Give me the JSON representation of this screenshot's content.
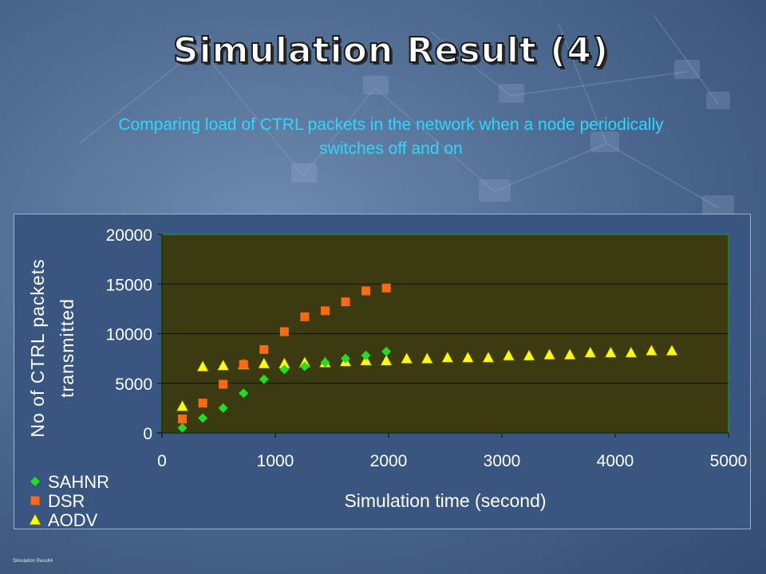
{
  "slide": {
    "title": "Simulation Result (4)",
    "subtitle_line1": "Comparing load of CTRL packets in the network when a node periodically",
    "subtitle_line2": "switches off and on",
    "footer": "Simulation Result4"
  },
  "colors": {
    "plot_background": "#3b3a10",
    "plot_border": "#2d7a2d",
    "subtitle": "#2fd7ff",
    "sahnr": "#22dd22",
    "dsr": "#ff6a10",
    "aodv": "#ffff00"
  },
  "chart_data": {
    "type": "scatter",
    "title": "",
    "xlabel": "Simulation time (second)",
    "ylabel_line1": "No of CTRL packets",
    "ylabel_line2": "transmitted",
    "xlim": [
      0,
      5000
    ],
    "ylim": [
      0,
      20000
    ],
    "xticks": [
      0,
      1000,
      2000,
      3000,
      4000,
      5000
    ],
    "yticks": [
      0,
      5000,
      10000,
      15000,
      20000
    ],
    "grid": "horizontal",
    "legend_position": "bottom-left",
    "series": [
      {
        "name": "SAHNR",
        "marker": "diamond",
        "color": "#22dd22",
        "x": [
          180,
          360,
          540,
          720,
          900,
          1080,
          1260,
          1440,
          1620,
          1800,
          1980
        ],
        "y": [
          500,
          1500,
          2500,
          4000,
          5400,
          6400,
          6700,
          7100,
          7500,
          7800,
          8200
        ]
      },
      {
        "name": "DSR",
        "marker": "square",
        "color": "#ff6a10",
        "x": [
          180,
          360,
          540,
          720,
          900,
          1080,
          1260,
          1440,
          1620,
          1800,
          1980
        ],
        "y": [
          1400,
          3000,
          4900,
          6900,
          8400,
          10200,
          11700,
          12300,
          13200,
          14300,
          14600
        ]
      },
      {
        "name": "AODV",
        "marker": "triangle",
        "color": "#ffff00",
        "x": [
          180,
          360,
          540,
          720,
          900,
          1080,
          1260,
          1440,
          1620,
          1800,
          1980,
          2160,
          2340,
          2520,
          2700,
          2880,
          3060,
          3240,
          3420,
          3600,
          3780,
          3960,
          4140,
          4320,
          4500
        ],
        "y": [
          2700,
          6700,
          6800,
          6900,
          7000,
          7000,
          7100,
          7100,
          7200,
          7300,
          7300,
          7500,
          7500,
          7600,
          7600,
          7600,
          7800,
          7800,
          7900,
          7900,
          8100,
          8100,
          8100,
          8300,
          8300
        ]
      }
    ]
  }
}
